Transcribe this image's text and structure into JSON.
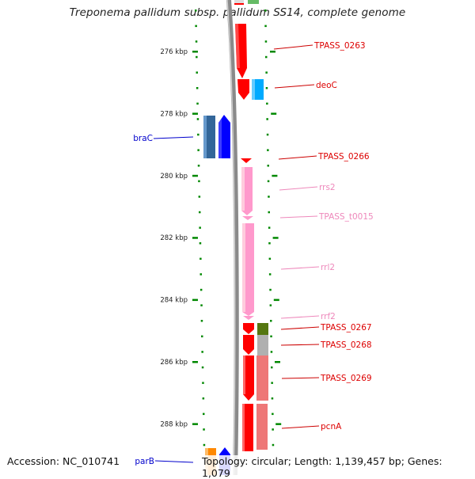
{
  "header": {
    "title": "Treponema pallidum subsp. pallidum SS14, complete genome"
  },
  "footer": {
    "accession": "Accession: NC_010741",
    "topology": "Topology: circular; Length: 1,139,457 bp; Genes: 1,079"
  },
  "scale": {
    "ticks": [
      {
        "label": "276 kbp",
        "kbp": 276
      },
      {
        "label": "278 kbp",
        "kbp": 278
      },
      {
        "label": "280 kbp",
        "kbp": 280
      },
      {
        "label": "282 kbp",
        "kbp": 282
      },
      {
        "label": "284 kbp",
        "kbp": 284
      },
      {
        "label": "286 kbp",
        "kbp": 286
      },
      {
        "label": "288 kbp",
        "kbp": 288
      }
    ]
  },
  "colors": {
    "backbone": "#8a8a8a",
    "gene_red": "#ff0000",
    "rna_pink": "#ff99cc",
    "label_red": "#dd0000",
    "label_pink": "#ee88bb",
    "label_blue": "#0000cc",
    "blue": "#0000ff",
    "steel_blue": "#336699",
    "sky_blue": "#00aaff",
    "olive": "#557711",
    "grey": "#b0b0b0",
    "salmon": "#ee7777",
    "orange": "#ff8800",
    "tick_green": "#008800"
  },
  "features": [
    {
      "label": "TPASS_0263",
      "type": "CDS",
      "strand": "+",
      "color": "gene_red"
    },
    {
      "label": "deoC",
      "type": "CDS",
      "strand": "+",
      "color": "gene_red"
    },
    {
      "label": "braC",
      "type": "CDS",
      "strand": "-",
      "color": "blue"
    },
    {
      "label": "TPASS_0266",
      "type": "CDS",
      "strand": "+",
      "color": "gene_red"
    },
    {
      "label": "rrs2",
      "type": "rRNA",
      "strand": "+",
      "color": "rna_pink"
    },
    {
      "label": "TPASS_t0015",
      "type": "tRNA",
      "strand": "+",
      "color": "rna_pink"
    },
    {
      "label": "rrl2",
      "type": "rRNA",
      "strand": "+",
      "color": "rna_pink"
    },
    {
      "label": "rrf2",
      "type": "rRNA",
      "strand": "+",
      "color": "rna_pink"
    },
    {
      "label": "TPASS_0267",
      "type": "CDS",
      "strand": "+",
      "color": "gene_red"
    },
    {
      "label": "TPASS_0268",
      "type": "CDS",
      "strand": "+",
      "color": "gene_red"
    },
    {
      "label": "TPASS_0269",
      "type": "CDS",
      "strand": "+",
      "color": "gene_red"
    },
    {
      "label": "pcnA",
      "type": "CDS",
      "strand": "+",
      "color": "gene_red"
    },
    {
      "label": "parB",
      "type": "CDS",
      "strand": "-",
      "color": "blue"
    }
  ]
}
